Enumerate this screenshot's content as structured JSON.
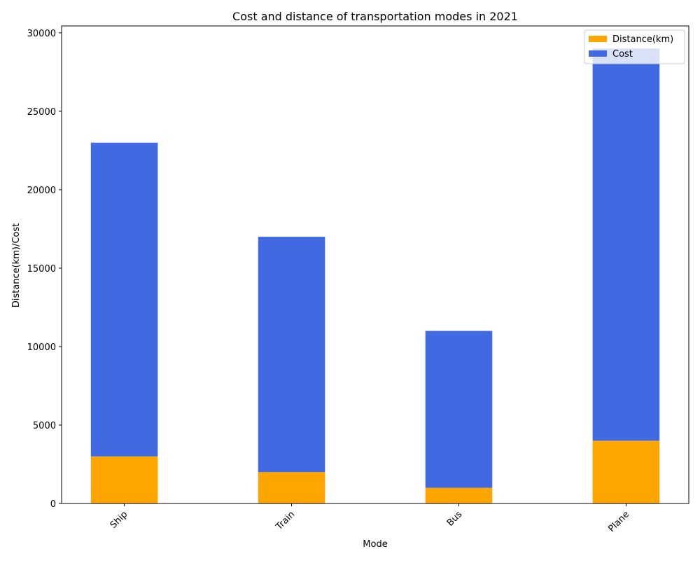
{
  "chart_data": {
    "type": "bar",
    "stacked": true,
    "title": "Cost and distance of transportation modes in 2021",
    "xlabel": "Mode",
    "ylabel": "Distance(km)/Cost",
    "categories": [
      "Ship",
      "Train",
      "Bus",
      "Plane"
    ],
    "series": [
      {
        "name": "Distance(km)",
        "values": [
          3000,
          2000,
          1000,
          4000
        ],
        "color": "#FFA500"
      },
      {
        "name": "Cost",
        "values": [
          20000,
          15000,
          10000,
          25000
        ],
        "color": "#4169E1"
      }
    ],
    "ylim": [
      0,
      30000
    ],
    "yticks": [
      0,
      5000,
      10000,
      15000,
      20000,
      25000,
      30000
    ],
    "grid": false,
    "legend_position": "top-right",
    "xtick_rotation_deg": 45
  }
}
